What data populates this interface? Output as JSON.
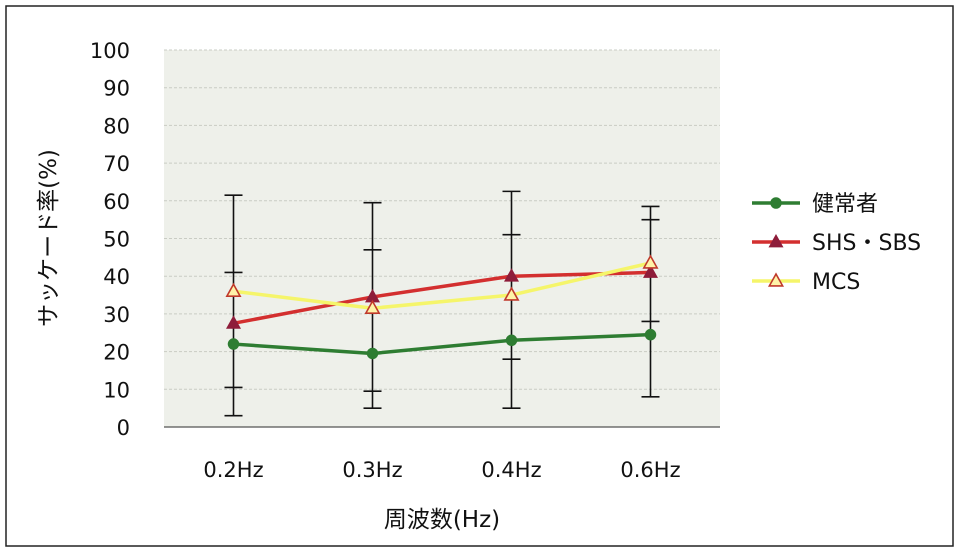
{
  "chart_data": {
    "type": "line",
    "title": "",
    "xlabel": "周波数(Hz)",
    "ylabel": "サッケード率(%)",
    "categories": [
      "0.2Hz",
      "0.3Hz",
      "0.4Hz",
      "0.6Hz"
    ],
    "ylim": [
      0,
      100
    ],
    "yticks": [
      0,
      10,
      20,
      30,
      40,
      50,
      60,
      70,
      80,
      90,
      100
    ],
    "grid": true,
    "legend_position": "right",
    "series": [
      {
        "name": "健常者",
        "color": "#2e7d32",
        "marker": "circle",
        "values": [
          22,
          19.5,
          23,
          24.5
        ],
        "error": [
          [
            10.5,
            3,
            41,
            61.5
          ],
          [
            9.5,
            5,
            47,
            59.5
          ],
          [
            18,
            5,
            51,
            62.5
          ],
          [
            28,
            8,
            55,
            58.5
          ]
        ]
      },
      {
        "name": "SHS・SBS",
        "color": "#d32f2f",
        "marker": "triangle-filled",
        "values": [
          27.5,
          34.5,
          40,
          41
        ],
        "error": []
      },
      {
        "name": "MCS",
        "color": "#f5f56a",
        "marker": "triangle-open",
        "values": [
          36,
          31.5,
          35,
          43.5
        ],
        "error": []
      }
    ]
  }
}
